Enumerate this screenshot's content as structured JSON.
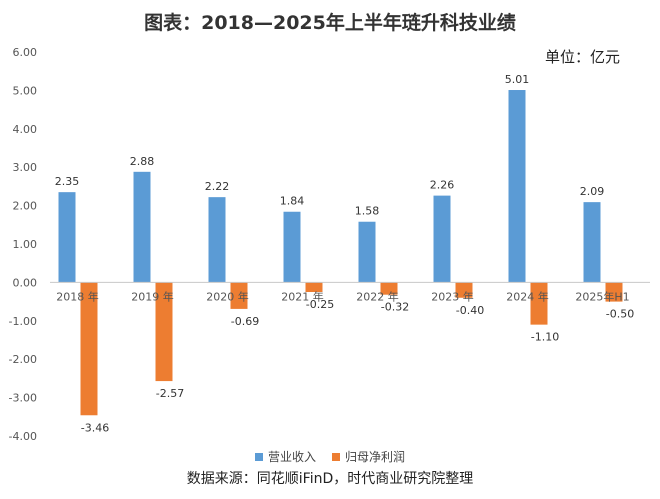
{
  "title": "图表：2018—2025年上半年琏升科技业绩",
  "unit": "单位：亿元",
  "source": "数据来源：同花顺iFinD，时代商业研究院整理",
  "colors": {
    "revenue": "#5b9bd5",
    "profit": "#ed7d31"
  },
  "chart_data": {
    "type": "bar",
    "categories": [
      "2018 年",
      "2019 年",
      "2020 年",
      "2021 年",
      "2022 年",
      "2023 年",
      "2024 年",
      "2025年H1"
    ],
    "series": [
      {
        "name": "营业收入",
        "values": [
          2.35,
          2.88,
          2.22,
          1.84,
          1.58,
          2.26,
          5.01,
          2.09
        ]
      },
      {
        "name": "归母净利润",
        "values": [
          -3.46,
          -2.57,
          -0.69,
          -0.25,
          -0.32,
          -0.4,
          -1.1,
          -0.5
        ]
      }
    ],
    "ylim": [
      -4.0,
      6.0
    ],
    "yticks": [
      "6.00",
      "5.00",
      "4.00",
      "3.00",
      "2.00",
      "1.00",
      "0.00",
      "-1.00",
      "-2.00",
      "-3.00",
      "-4.00"
    ],
    "grid": false,
    "legend_position": "bottom"
  }
}
